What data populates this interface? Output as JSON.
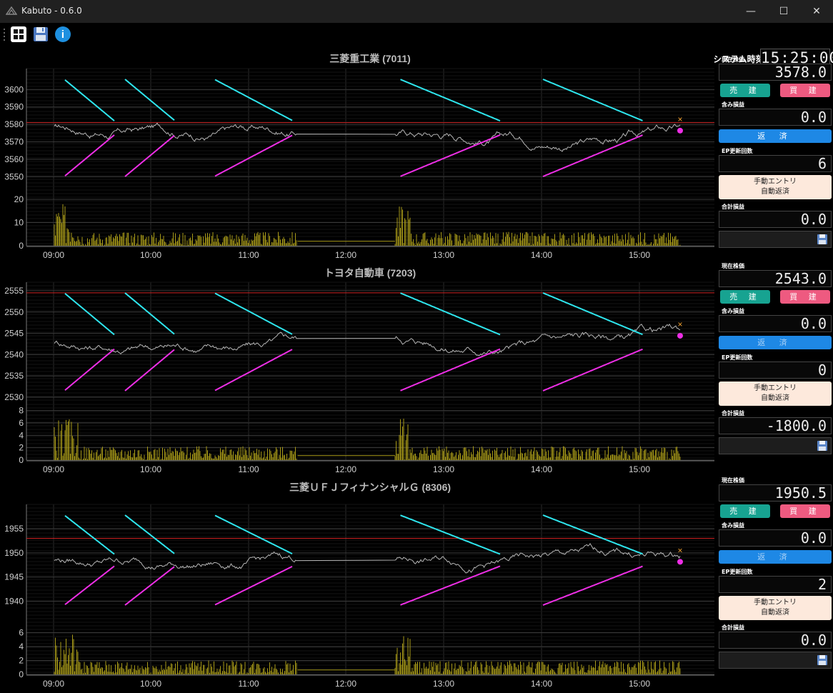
{
  "app": {
    "title": "Kabuto - 0.6.0"
  },
  "window_controls": {
    "minimize": "—",
    "maximize": "☐",
    "close": "✕"
  },
  "toolbar": {
    "icons": [
      "grid-icon",
      "save-icon",
      "info-icon"
    ],
    "info_glyph": "i"
  },
  "system_time": {
    "label": "システム時刻",
    "value": "15:25:00"
  },
  "colors": {
    "background": "#000000",
    "price": "#b5b5b5",
    "volume": "#a89a18",
    "upper_line": "#2ee6ee",
    "lower_line": "#ee2ee6",
    "baseline": "#cc2222",
    "sell": "#17a391",
    "buy": "#ee5a80",
    "close": "#1e88e5"
  },
  "time_labels": [
    "09:00",
    "10:00",
    "11:00",
    "12:00",
    "13:00",
    "14:00",
    "15:00"
  ],
  "panels": [
    {
      "title": "三菱重工業 (7011)",
      "price_ticks": [
        "3600",
        "3590",
        "3580",
        "3570",
        "3560",
        "3550"
      ],
      "volume_ticks": [
        "20",
        "10",
        "0"
      ],
      "price_range": [
        3544,
        3612
      ],
      "volume_max": 24,
      "baseline_value": 3581,
      "side": {
        "current_price_label": "現在株価",
        "current_price": "3578.0",
        "sell_label": "売 建",
        "buy_label": "買 建",
        "unrealized_label": "含み損益",
        "unrealized": "0.0",
        "close_label": "返 済",
        "ep_label": "EP更新回数",
        "ep_count": "6",
        "manual_line1": "手動エントリ",
        "manual_line2": "自動返済",
        "total_label": "合計損益",
        "total": "0.0"
      }
    },
    {
      "title": "トヨタ自動車 (7203)",
      "price_ticks": [
        "2555",
        "2550",
        "2545",
        "2540",
        "2535",
        "2530"
      ],
      "volume_ticks": [
        "8",
        "6",
        "4",
        "2",
        "0"
      ],
      "price_range": [
        2529,
        2557
      ],
      "volume_max": 9,
      "baseline_value": 2554.5,
      "side": {
        "current_price_label": "現在株価",
        "current_price": "2543.0",
        "sell_label": "売 建",
        "buy_label": "買 建",
        "unrealized_label": "含み損益",
        "unrealized": "0.0",
        "close_label": "返 済",
        "ep_label": "EP更新回数",
        "ep_count": "0",
        "manual_line1": "手動エントリ",
        "manual_line2": "自動返済",
        "total_label": "合計損益",
        "total": "-1800.0"
      }
    },
    {
      "title": "三菱ＵＦＪフィナンシャルＧ (8306)",
      "price_ticks": [
        "1955",
        "1950",
        "1945",
        "1940"
      ],
      "volume_ticks": [
        "6",
        "4",
        "2",
        "0"
      ],
      "price_range": [
        1937,
        1960
      ],
      "volume_max": 8,
      "baseline_value": 1953,
      "side": {
        "current_price_label": "現在株価",
        "current_price": "1950.5",
        "sell_label": "売 建",
        "buy_label": "買 建",
        "unrealized_label": "含み損益",
        "unrealized": "0.0",
        "close_label": "返 済",
        "ep_label": "EP更新回数",
        "ep_count": "2",
        "manual_line1": "手動エントリ",
        "manual_line2": "自動返済",
        "total_label": "合計損益",
        "total": "0.0"
      }
    }
  ]
}
